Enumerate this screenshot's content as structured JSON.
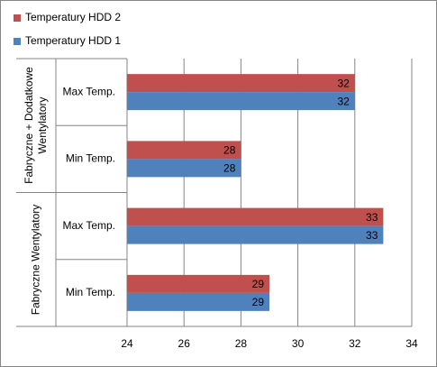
{
  "chart_data": {
    "type": "bar",
    "orientation": "horizontal",
    "groups": [
      {
        "name": "Fabryczne + Dodatkowe Wentylatory",
        "categories": [
          "Max Temp.",
          "Min Temp."
        ]
      },
      {
        "name": "Fabryczne Wentylatory",
        "categories": [
          "Max Temp.",
          "Min Temp."
        ]
      }
    ],
    "series": [
      {
        "name": "Temperatury HDD 2",
        "color": "#c0504d",
        "values": [
          32,
          28,
          33,
          29
        ]
      },
      {
        "name": "Temperatury HDD 1",
        "color": "#4f81bd",
        "values": [
          32,
          28,
          33,
          29
        ]
      }
    ],
    "xlim": [
      24,
      34
    ],
    "xticks": [
      24,
      26,
      28,
      30,
      32,
      34
    ],
    "grid": true,
    "legend": "top-left"
  }
}
